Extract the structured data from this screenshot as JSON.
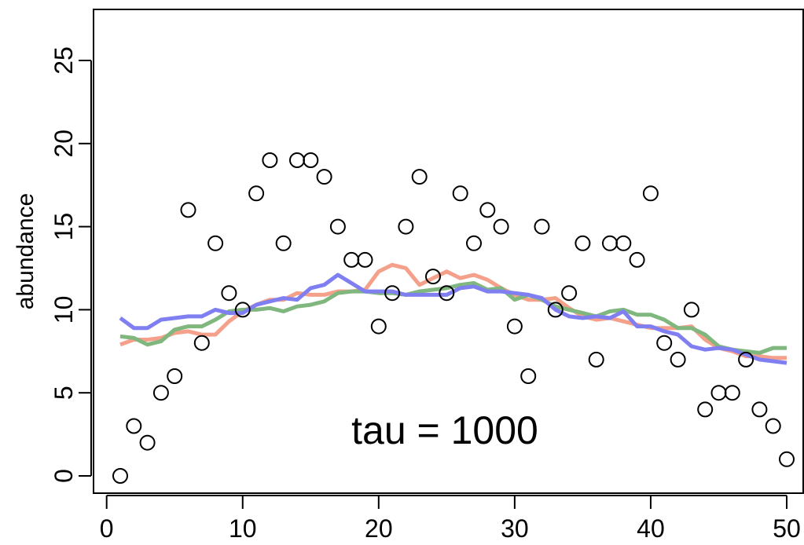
{
  "chart_data": {
    "type": "scatter",
    "title": "",
    "annotation": "tau = 1000",
    "xlabel": "",
    "ylabel": "abundance",
    "xlim": [
      0,
      50
    ],
    "ylim": [
      0,
      27
    ],
    "xticks": [
      0,
      10,
      20,
      30,
      40,
      50
    ],
    "yticks": [
      0,
      5,
      10,
      15,
      20,
      25
    ],
    "grid": false,
    "points": {
      "x": [
        1,
        2,
        3,
        4,
        5,
        6,
        7,
        8,
        9,
        10,
        11,
        12,
        13,
        14,
        15,
        16,
        17,
        18,
        19,
        20,
        21,
        22,
        23,
        24,
        25,
        26,
        27,
        28,
        29,
        30,
        31,
        32,
        33,
        34,
        35,
        36,
        37,
        38,
        39,
        40,
        41,
        42,
        43,
        44,
        45,
        46,
        47,
        48,
        49,
        50
      ],
      "y": [
        0,
        3,
        2,
        5,
        6,
        16,
        8,
        14,
        11,
        10,
        17,
        19,
        14,
        19,
        19,
        18,
        15,
        13,
        13,
        9,
        11,
        15,
        18,
        12,
        11,
        17,
        14,
        16,
        15,
        9,
        6,
        15,
        10,
        11,
        14,
        7,
        14,
        14,
        13,
        17,
        8,
        7,
        10,
        4,
        5,
        5,
        7,
        4,
        3,
        1
      ]
    },
    "series": [
      {
        "color": "#f4a08a",
        "values": [
          7.9,
          8.2,
          8.2,
          8.3,
          8.6,
          8.7,
          8.5,
          8.5,
          9.3,
          9.9,
          10.3,
          10.6,
          10.6,
          11.0,
          10.9,
          10.9,
          11.1,
          11.1,
          11.2,
          12.3,
          12.7,
          12.5,
          11.5,
          11.9,
          12.3,
          11.9,
          12.1,
          11.8,
          11.3,
          10.9,
          10.6,
          10.6,
          10.7,
          10.1,
          9.6,
          9.4,
          9.5,
          9.3,
          9.1,
          8.9,
          8.9,
          8.9,
          9.0,
          8.2,
          7.7,
          7.5,
          7.2,
          7.2,
          7.1,
          7.1
        ]
      },
      {
        "color": "#7fb77e",
        "values": [
          8.4,
          8.3,
          7.9,
          8.1,
          8.8,
          9.0,
          9.0,
          9.4,
          9.9,
          10.0,
          10.0,
          10.1,
          9.9,
          10.2,
          10.3,
          10.5,
          11.0,
          11.1,
          11.1,
          11.0,
          11.0,
          10.9,
          11.1,
          11.2,
          11.3,
          11.5,
          11.6,
          11.2,
          11.3,
          10.6,
          10.9,
          10.6,
          10.2,
          10.0,
          9.8,
          9.6,
          9.9,
          10.0,
          9.7,
          9.7,
          9.4,
          8.9,
          8.9,
          8.5,
          7.8,
          7.6,
          7.5,
          7.4,
          7.7,
          7.7
        ]
      },
      {
        "color": "#7f7ff2",
        "values": [
          9.5,
          8.9,
          8.9,
          9.4,
          9.5,
          9.6,
          9.6,
          10.0,
          9.8,
          9.8,
          10.3,
          10.5,
          10.7,
          10.6,
          11.3,
          11.5,
          12.1,
          11.6,
          11.1,
          11.1,
          11.1,
          10.9,
          10.9,
          10.9,
          10.9,
          11.3,
          11.4,
          11.1,
          11.1,
          11.0,
          10.9,
          10.7,
          10.0,
          9.6,
          9.5,
          9.6,
          9.5,
          9.9,
          9.0,
          9.0,
          8.7,
          8.5,
          7.8,
          7.6,
          7.7,
          7.6,
          7.3,
          7.0,
          6.9,
          6.8
        ]
      }
    ]
  }
}
